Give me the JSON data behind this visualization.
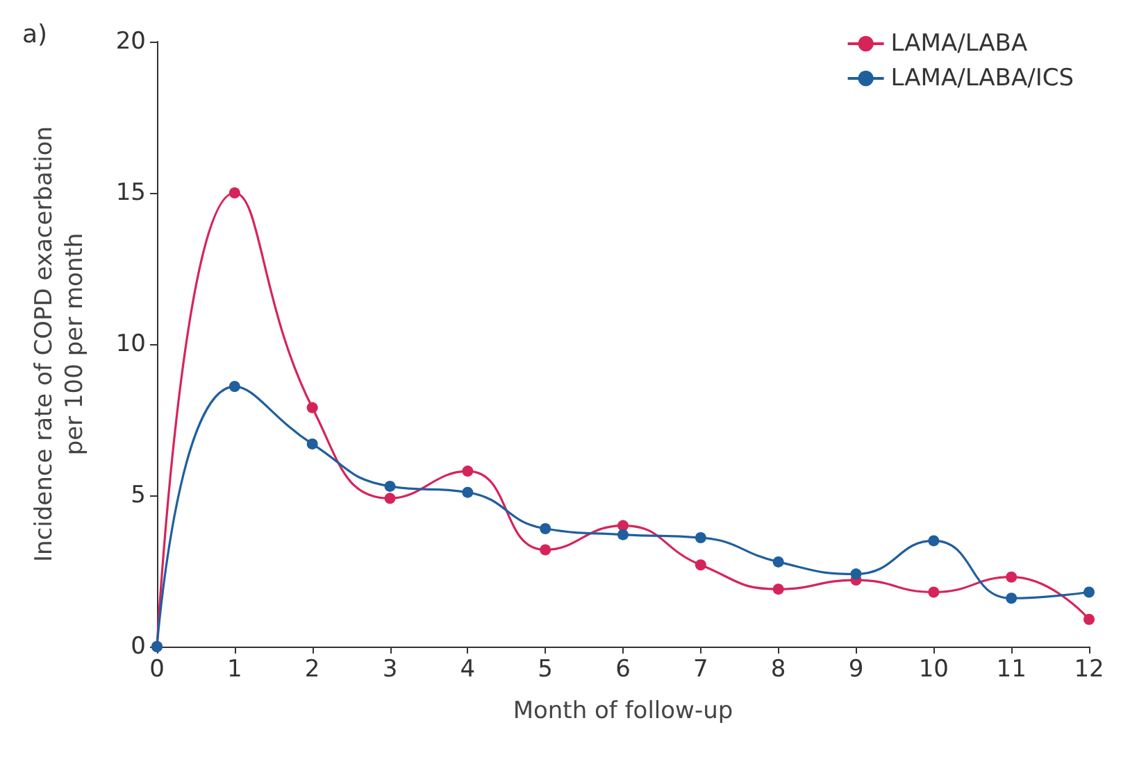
{
  "chart_data": {
    "type": "line",
    "annotations": [
      "a)"
    ],
    "xlabel": "Month of follow-up",
    "ylabel": "Incidence rate of COPD exacerbation\nper 100 per month",
    "x": [
      0,
      1,
      2,
      3,
      4,
      5,
      6,
      7,
      8,
      9,
      10,
      11,
      12
    ],
    "series": [
      {
        "name": "LAMA/LABA",
        "color": "#d6245a",
        "values": [
          0,
          15.0,
          7.9,
          4.9,
          5.8,
          3.2,
          4.0,
          2.7,
          1.9,
          2.2,
          1.8,
          2.3,
          0.9
        ]
      },
      {
        "name": "LAMA/LABA/ICS",
        "color": "#1f5f9e",
        "values": [
          0,
          8.6,
          6.7,
          5.3,
          5.1,
          3.9,
          3.7,
          3.6,
          2.8,
          2.4,
          3.5,
          1.6,
          1.8
        ]
      }
    ],
    "xlim": [
      0,
      12
    ],
    "xticks": [
      0,
      1,
      2,
      3,
      4,
      5,
      6,
      7,
      8,
      9,
      10,
      11,
      12
    ],
    "ylim": [
      0,
      20
    ],
    "yticks": [
      0,
      5,
      10,
      15,
      20
    ],
    "grid": false,
    "legend": "top right",
    "marker": "circle",
    "line_style": "solid"
  }
}
